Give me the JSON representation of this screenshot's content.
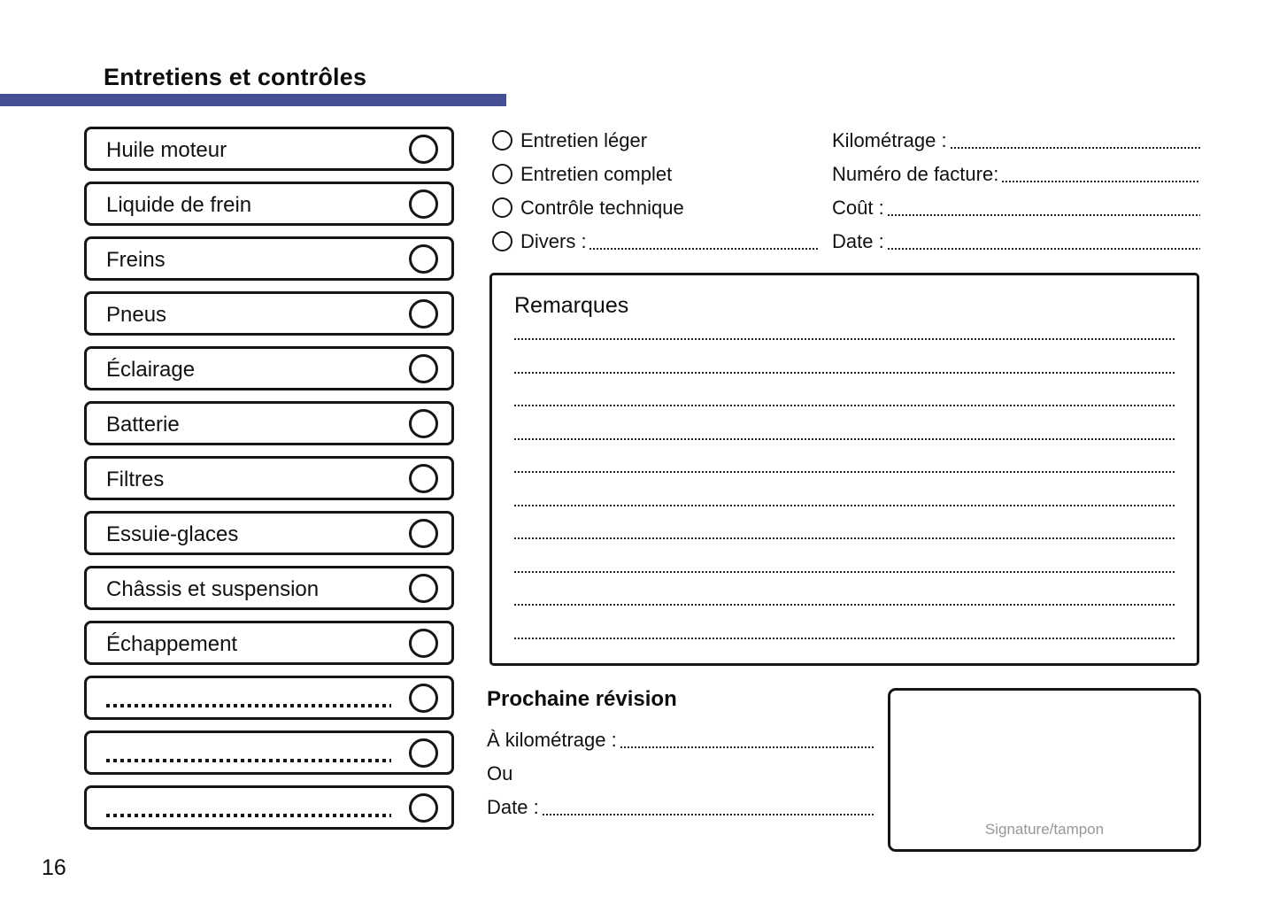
{
  "page": {
    "title": "Entretiens et contrôles",
    "page_number": "16",
    "accent_color": "#474f94"
  },
  "checklist": {
    "items": [
      {
        "label": "Huile moteur",
        "blank": false
      },
      {
        "label": "Liquide de frein",
        "blank": false
      },
      {
        "label": "Freins",
        "blank": false
      },
      {
        "label": "Pneus",
        "blank": false
      },
      {
        "label": "Éclairage",
        "blank": false
      },
      {
        "label": "Batterie",
        "blank": false
      },
      {
        "label": "Filtres",
        "blank": false
      },
      {
        "label": "Essuie-glaces",
        "blank": false
      },
      {
        "label": "Châssis et suspension",
        "blank": false
      },
      {
        "label": "Échappement",
        "blank": false
      },
      {
        "label": "",
        "blank": true
      },
      {
        "label": "",
        "blank": true
      },
      {
        "label": "",
        "blank": true
      }
    ]
  },
  "service_types": {
    "options": [
      {
        "label": "Entretien léger",
        "dotted": false
      },
      {
        "label": "Entretien complet",
        "dotted": false
      },
      {
        "label": "Contrôle technique",
        "dotted": false
      },
      {
        "label": "Divers :",
        "dotted": true
      }
    ]
  },
  "invoice_fields": [
    {
      "label": "Kilométrage :",
      "dotted": true
    },
    {
      "label": "Numéro de facture:",
      "dotted": true
    },
    {
      "label": "Coût :",
      "dotted": true
    },
    {
      "label": "Date :",
      "dotted": true
    }
  ],
  "remarks": {
    "title": "Remarques",
    "line_count": 10
  },
  "next_service": {
    "title": "Prochaine révision",
    "fields": [
      {
        "label": "À kilométrage :",
        "dotted": true
      },
      {
        "label": "Ou",
        "dotted": false
      },
      {
        "label": "Date :",
        "dotted": true
      }
    ]
  },
  "signature": {
    "label": "Signature/tampon"
  }
}
